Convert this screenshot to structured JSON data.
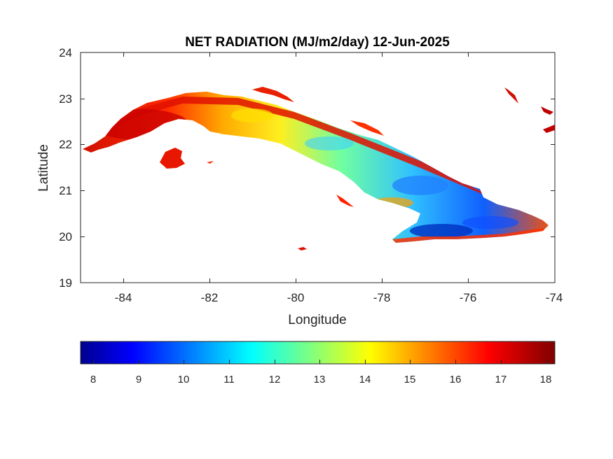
{
  "map": {
    "title": "NET RADIATION (MJ/m2/day) 12-Jun-2025",
    "xlabel": "Longitude",
    "ylabel": "Latitude",
    "xlim": [
      -85,
      -74
    ],
    "ylim": [
      19,
      24
    ],
    "xticks": [
      "-84",
      "-82",
      "-80",
      "-78",
      "-76",
      "-74"
    ],
    "yticks": [
      "19",
      "20",
      "21",
      "22",
      "23",
      "24"
    ],
    "grid": false,
    "colormap": "jet",
    "colorbar": {
      "placement": "bottom",
      "range": [
        7.7,
        18.2
      ],
      "ticks": [
        "8",
        "9",
        "10",
        "11",
        "12",
        "13",
        "14",
        "15",
        "16",
        "17",
        "18"
      ]
    },
    "colors": {
      "low": "#00008f",
      "mid_low": "#0060ff",
      "mid": "#00ffff",
      "mid_high": "#ffff00",
      "high": "#ff2000",
      "max": "#800000"
    }
  }
}
